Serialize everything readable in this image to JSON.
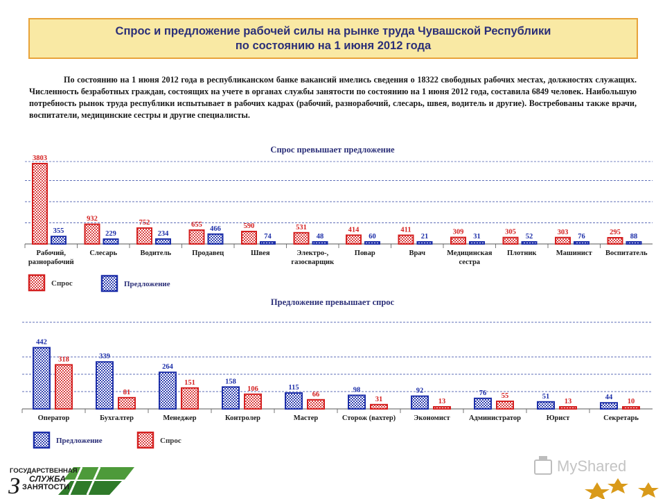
{
  "header": {
    "title_line1": "Спрос и предложение рабочей силы на рынке труда Чувашской Республики",
    "title_line2": "по состоянию на 1 июня 2012 года"
  },
  "intro_text": "По состоянию на 1 июня 2012 года в республиканском банке вакансий имелись сведения о 18322 свободных рабочих местах, должностях служащих. Численность безработных граждан, состоящих на учете в органах службы занятости по состоянию на 1 июня 2012 года, составила 6849 человек. Наибольшую потребность рынок труда республики испытывает в рабочих кадрах (рабочий, разнорабочий, слесарь, швея, водитель и другие). Востребованы также врачи, воспитатели, медицинские сестры и другие специалисты.",
  "colors": {
    "demand": "#d42020",
    "supply": "#1c2ea8",
    "grid": "#2a3ea0"
  },
  "chart_data": [
    {
      "type": "bar",
      "title": "Спрос превышает предложение",
      "categories": [
        [
          "Рабочий,",
          "разнорабочий"
        ],
        [
          "Слесарь"
        ],
        [
          "Водитель"
        ],
        [
          "Продавец"
        ],
        [
          "Швея"
        ],
        [
          "Электро-,",
          "газосварщик"
        ],
        [
          "Повар"
        ],
        [
          "Врач"
        ],
        [
          "Медицинская",
          "сестра"
        ],
        [
          "Плотник"
        ],
        [
          "Машинист"
        ],
        [
          "Воспитатель"
        ]
      ],
      "series": [
        {
          "name": "Спрос",
          "color": "#d42020",
          "values": [
            3803,
            932,
            752,
            655,
            590,
            531,
            414,
            411,
            309,
            305,
            303,
            295
          ]
        },
        {
          "name": "Предложение",
          "color": "#1c2ea8",
          "values": [
            355,
            229,
            234,
            466,
            74,
            48,
            60,
            21,
            31,
            52,
            76,
            88
          ]
        }
      ],
      "ylim": [
        0,
        4000
      ],
      "grid": true,
      "legend": [
        "Спрос",
        "Предложение"
      ]
    },
    {
      "type": "bar",
      "title": "Предложение превышает спрос",
      "categories": [
        [
          "Оператор"
        ],
        [
          "Бухгалтер"
        ],
        [
          "Менеджер"
        ],
        [
          "Контролер"
        ],
        [
          "Мастер"
        ],
        [
          "Сторож (вахтер)"
        ],
        [
          "Экономист"
        ],
        [
          "Администратор"
        ],
        [
          "Юрист"
        ],
        [
          "Секретарь"
        ]
      ],
      "series": [
        {
          "name": "Предложение",
          "color": "#1c2ea8",
          "values": [
            442,
            339,
            264,
            158,
            115,
            98,
            92,
            76,
            51,
            44
          ]
        },
        {
          "name": "Спрос",
          "color": "#d42020",
          "values": [
            318,
            81,
            151,
            106,
            66,
            31,
            13,
            55,
            13,
            10
          ]
        }
      ],
      "ylim": [
        0,
        500
      ],
      "grid": true,
      "legend": [
        "Предложение",
        "Спрос"
      ]
    }
  ],
  "logo": {
    "line1": "ГОСУДАРСТВЕННАЯ",
    "line2": "СЛУЖБА",
    "line3": "ЗАНЯТОСТИ"
  },
  "watermark": "MyShared"
}
